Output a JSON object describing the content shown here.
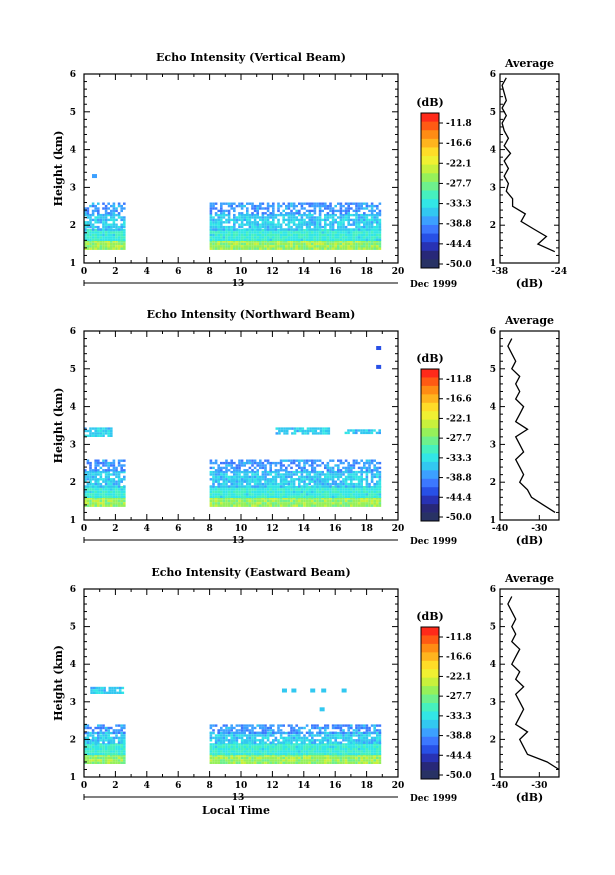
{
  "date_label": "Dec 1999",
  "day_label": "13",
  "xlabel_bottom": "Local Time",
  "colorbar": {
    "unit": "(dB)",
    "ticks": [
      "-11.8",
      "-16.6",
      "-22.1",
      "-27.7",
      "-33.3",
      "-38.8",
      "-44.4",
      "-50.0"
    ],
    "colors": [
      "#ff2a1a",
      "#ff5a14",
      "#ff8c14",
      "#ffb41e",
      "#ffdc28",
      "#f0f032",
      "#c8f03c",
      "#96f05a",
      "#6ef08c",
      "#46f0be",
      "#32e6e6",
      "#32c8f0",
      "#3ca0ff",
      "#3c78ff",
      "#2850e6",
      "#2832b4",
      "#282878",
      "#283264"
    ]
  },
  "chart_data": [
    {
      "type": "heatmap",
      "title": "Echo Intensity (Vertical Beam)",
      "xlabel": "",
      "ylabel": "Height (km)",
      "xlim": [
        0,
        20
      ],
      "ylim": [
        1,
        6
      ],
      "xticks": [
        0,
        2,
        4,
        6,
        8,
        10,
        12,
        14,
        16,
        18,
        20
      ],
      "yticks": [
        1,
        2,
        3,
        4,
        5,
        6
      ],
      "zlim_db": [
        -50.0,
        -11.8
      ],
      "segments": [
        {
          "x": [
            0,
            2.6
          ],
          "layers": [
            [
              1.4,
              1.6,
              -27.7
            ],
            [
              1.6,
              1.9,
              -33.3
            ],
            [
              1.9,
              2.3,
              -36.0
            ],
            [
              2.3,
              2.6,
              -38.8
            ]
          ]
        },
        {
          "x": [
            8,
            18.8
          ],
          "layers": [
            [
              1.4,
              1.6,
              -27.7
            ],
            [
              1.6,
              1.9,
              -33.3
            ],
            [
              1.9,
              2.3,
              -36.0
            ],
            [
              2.3,
              2.6,
              -38.8
            ]
          ]
        }
      ],
      "isolated": [
        {
          "x": 0.7,
          "y": 3.3,
          "db": -38.8
        }
      ],
      "average": {
        "title": "Average",
        "xlabel": "(dB)",
        "xlim": [
          -38,
          -24
        ],
        "xticks": [
          -38,
          -24
        ],
        "yticks": [
          1,
          2,
          3,
          4,
          5,
          6
        ],
        "height": [
          1.3,
          1.5,
          1.7,
          1.9,
          2.1,
          2.3,
          2.5,
          2.7,
          2.9,
          3.1,
          3.3,
          3.5,
          3.7,
          3.9,
          4.1,
          4.3,
          4.5,
          4.7,
          4.9,
          5.1,
          5.3,
          5.5,
          5.7,
          5.9
        ],
        "value": [
          -25,
          -29,
          -27,
          -30,
          -33,
          -32,
          -35,
          -35,
          -36.5,
          -36,
          -37,
          -36,
          -37,
          -35.5,
          -37,
          -36,
          -37,
          -37.5,
          -36.5,
          -37.5,
          -36.5,
          -37,
          -37.5,
          -36.5
        ]
      }
    },
    {
      "type": "heatmap",
      "title": "Echo Intensity (Northward Beam)",
      "xlabel": "",
      "ylabel": "Height (km)",
      "xlim": [
        0,
        20
      ],
      "ylim": [
        1,
        6
      ],
      "xticks": [
        0,
        2,
        4,
        6,
        8,
        10,
        12,
        14,
        16,
        18,
        20
      ],
      "yticks": [
        1,
        2,
        3,
        4,
        5,
        6
      ],
      "zlim_db": [
        -50.0,
        -11.8
      ],
      "segments": [
        {
          "x": [
            0,
            2.6
          ],
          "layers": [
            [
              1.4,
              1.6,
              -27.7
            ],
            [
              1.6,
              1.9,
              -33.3
            ],
            [
              1.9,
              2.3,
              -36.0
            ],
            [
              2.3,
              2.6,
              -38.8
            ]
          ]
        },
        {
          "x": [
            8,
            18.8
          ],
          "layers": [
            [
              1.4,
              1.6,
              -27.7
            ],
            [
              1.6,
              1.9,
              -33.3
            ],
            [
              1.9,
              2.3,
              -36.0
            ],
            [
              2.3,
              2.6,
              -38.8
            ]
          ]
        }
      ],
      "bands": [
        {
          "x": [
            0,
            1.8
          ],
          "y": [
            3.25,
            3.45
          ],
          "db": -36.0
        },
        {
          "x": [
            12.2,
            15.6
          ],
          "y": [
            3.3,
            3.45
          ],
          "db": -36.0
        },
        {
          "x": [
            16.6,
            18.8
          ],
          "y": [
            3.3,
            3.4
          ],
          "db": -36.0
        }
      ],
      "isolated": [
        {
          "x": 18.8,
          "y": 5.55,
          "db": -41.6
        },
        {
          "x": 18.8,
          "y": 5.05,
          "db": -41.6
        }
      ],
      "average": {
        "title": "Average",
        "xlabel": "(dB)",
        "xlim": [
          -40,
          -25
        ],
        "xticks": [
          -40,
          -30
        ],
        "yticks": [
          1,
          2,
          3,
          4,
          5,
          6
        ],
        "height": [
          1.2,
          1.4,
          1.6,
          1.8,
          2.0,
          2.2,
          2.4,
          2.6,
          2.8,
          3.0,
          3.2,
          3.4,
          3.6,
          3.8,
          4.0,
          4.2,
          4.4,
          4.6,
          4.8,
          5.0,
          5.2,
          5.4,
          5.6,
          5.8
        ],
        "value": [
          -26,
          -29,
          -32,
          -33,
          -35,
          -34,
          -35,
          -36,
          -34,
          -35,
          -36,
          -33,
          -36,
          -35,
          -34,
          -36,
          -35,
          -36,
          -35,
          -37,
          -36,
          -37,
          -38,
          -37
        ]
      }
    },
    {
      "type": "heatmap",
      "title": "Echo Intensity (Eastward Beam)",
      "xlabel": "Local Time",
      "ylabel": "Height (km)",
      "xlim": [
        0,
        20
      ],
      "ylim": [
        1,
        6
      ],
      "xticks": [
        0,
        2,
        4,
        6,
        8,
        10,
        12,
        14,
        16,
        18,
        20
      ],
      "yticks": [
        1,
        2,
        3,
        4,
        5,
        6
      ],
      "zlim_db": [
        -50.0,
        -11.8
      ],
      "segments": [
        {
          "x": [
            0,
            2.6
          ],
          "layers": [
            [
              1.4,
              1.6,
              -27.7
            ],
            [
              1.6,
              1.9,
              -33.3
            ],
            [
              1.9,
              2.2,
              -36.0
            ],
            [
              2.2,
              2.4,
              -38.8
            ]
          ]
        },
        {
          "x": [
            8,
            18.8
          ],
          "layers": [
            [
              1.4,
              1.6,
              -27.7
            ],
            [
              1.6,
              1.9,
              -33.3
            ],
            [
              1.9,
              2.2,
              -36.0
            ],
            [
              2.2,
              2.4,
              -38.8
            ]
          ]
        }
      ],
      "bands": [
        {
          "x": [
            0.4,
            2.4
          ],
          "y": [
            3.25,
            3.4
          ],
          "db": -36.0
        }
      ],
      "isolated": [
        {
          "x": 12.8,
          "y": 3.3,
          "db": -36.0
        },
        {
          "x": 13.4,
          "y": 3.3,
          "db": -36.0
        },
        {
          "x": 14.6,
          "y": 3.3,
          "db": -36.0
        },
        {
          "x": 15.3,
          "y": 3.3,
          "db": -36.0
        },
        {
          "x": 16.6,
          "y": 3.3,
          "db": -36.0
        },
        {
          "x": 15.2,
          "y": 2.8,
          "db": -36.0
        }
      ],
      "average": {
        "title": "Average",
        "xlabel": "(dB)",
        "xlim": [
          -40,
          -25
        ],
        "xticks": [
          -40,
          -30
        ],
        "yticks": [
          1,
          2,
          3,
          4,
          5,
          6
        ],
        "height": [
          1.2,
          1.4,
          1.6,
          1.8,
          2.0,
          2.2,
          2.4,
          2.6,
          2.8,
          3.0,
          3.2,
          3.4,
          3.6,
          3.8,
          4.0,
          4.2,
          4.4,
          4.6,
          4.8,
          5.0,
          5.2,
          5.4,
          5.6,
          5.8
        ],
        "value": [
          -25,
          -28,
          -33,
          -34,
          -35,
          -33,
          -36,
          -35,
          -34,
          -35,
          -36,
          -34,
          -36,
          -35,
          -37,
          -36,
          -35,
          -37,
          -36,
          -37,
          -36,
          -37,
          -38,
          -37
        ]
      }
    }
  ]
}
